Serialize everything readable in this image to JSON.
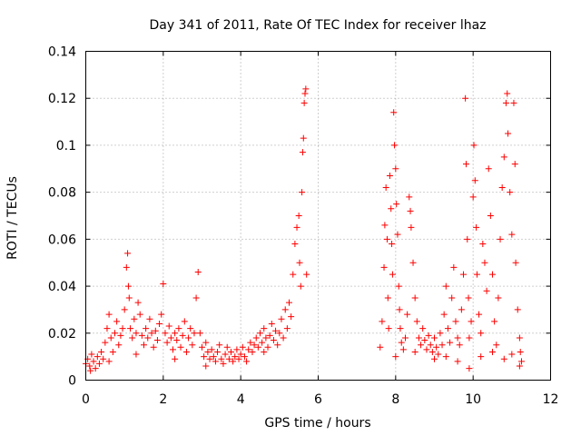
{
  "chart_data": {
    "type": "scatter",
    "title": "Day 341 of 2011, Rate Of TEC Index for receiver lhaz",
    "xlabel": "GPS time / hours",
    "ylabel": "ROTI / TECUs",
    "xlim": [
      0,
      12
    ],
    "ylim": [
      0,
      0.14
    ],
    "xticks": [
      "0",
      "2",
      "4",
      "6",
      "8",
      "10",
      "12"
    ],
    "yticks": [
      "0",
      "0.02",
      "0.04",
      "0.06",
      "0.08",
      "0.1",
      "0.12",
      "0.14"
    ],
    "grid": true,
    "marker": "+",
    "color": "#ff0000",
    "series": [
      {
        "name": "ROTI",
        "points": [
          [
            0.0,
            0.007
          ],
          [
            0.05,
            0.009
          ],
          [
            0.1,
            0.006
          ],
          [
            0.15,
            0.011
          ],
          [
            0.2,
            0.008
          ],
          [
            0.25,
            0.005
          ],
          [
            0.3,
            0.01
          ],
          [
            0.35,
            0.007
          ],
          [
            0.4,
            0.012
          ],
          [
            0.45,
            0.009
          ],
          [
            0.5,
            0.016
          ],
          [
            0.55,
            0.022
          ],
          [
            0.6,
            0.028
          ],
          [
            0.65,
            0.018
          ],
          [
            0.7,
            0.012
          ],
          [
            0.75,
            0.02
          ],
          [
            0.8,
            0.025
          ],
          [
            0.85,
            0.015
          ],
          [
            0.9,
            0.019
          ],
          [
            0.95,
            0.022
          ],
          [
            1.0,
            0.03
          ],
          [
            1.05,
            0.048
          ],
          [
            1.08,
            0.054
          ],
          [
            1.1,
            0.04
          ],
          [
            1.12,
            0.035
          ],
          [
            1.15,
            0.022
          ],
          [
            1.2,
            0.018
          ],
          [
            1.25,
            0.026
          ],
          [
            1.3,
            0.02
          ],
          [
            1.35,
            0.033
          ],
          [
            1.4,
            0.028
          ],
          [
            1.45,
            0.019
          ],
          [
            1.5,
            0.015
          ],
          [
            1.55,
            0.022
          ],
          [
            1.6,
            0.018
          ],
          [
            1.65,
            0.026
          ],
          [
            1.7,
            0.02
          ],
          [
            1.75,
            0.014
          ],
          [
            1.8,
            0.021
          ],
          [
            1.85,
            0.017
          ],
          [
            1.9,
            0.024
          ],
          [
            1.95,
            0.028
          ],
          [
            2.0,
            0.041
          ],
          [
            2.05,
            0.02
          ],
          [
            2.1,
            0.016
          ],
          [
            2.15,
            0.023
          ],
          [
            2.2,
            0.018
          ],
          [
            2.25,
            0.013
          ],
          [
            2.3,
            0.02
          ],
          [
            2.35,
            0.017
          ],
          [
            2.4,
            0.022
          ],
          [
            2.45,
            0.014
          ],
          [
            2.5,
            0.019
          ],
          [
            2.55,
            0.025
          ],
          [
            2.6,
            0.012
          ],
          [
            2.65,
            0.018
          ],
          [
            2.7,
            0.022
          ],
          [
            2.75,
            0.015
          ],
          [
            2.8,
            0.02
          ],
          [
            2.85,
            0.035
          ],
          [
            2.9,
            0.046
          ],
          [
            2.95,
            0.02
          ],
          [
            3.0,
            0.014
          ],
          [
            3.05,
            0.01
          ],
          [
            3.1,
            0.016
          ],
          [
            3.15,
            0.012
          ],
          [
            3.2,
            0.009
          ],
          [
            3.25,
            0.013
          ],
          [
            3.3,
            0.01
          ],
          [
            3.35,
            0.008
          ],
          [
            3.4,
            0.012
          ],
          [
            3.45,
            0.015
          ],
          [
            3.5,
            0.009
          ],
          [
            3.55,
            0.007
          ],
          [
            3.6,
            0.011
          ],
          [
            3.65,
            0.014
          ],
          [
            3.7,
            0.009
          ],
          [
            3.75,
            0.012
          ],
          [
            3.8,
            0.008
          ],
          [
            3.85,
            0.01
          ],
          [
            3.9,
            0.013
          ],
          [
            3.95,
            0.009
          ],
          [
            4.0,
            0.011
          ],
          [
            4.05,
            0.014
          ],
          [
            4.1,
            0.01
          ],
          [
            4.15,
            0.008
          ],
          [
            4.2,
            0.013
          ],
          [
            4.25,
            0.016
          ],
          [
            4.3,
            0.012
          ],
          [
            4.35,
            0.015
          ],
          [
            4.4,
            0.018
          ],
          [
            4.45,
            0.014
          ],
          [
            4.5,
            0.02
          ],
          [
            4.55,
            0.016
          ],
          [
            4.6,
            0.022
          ],
          [
            4.65,
            0.018
          ],
          [
            4.7,
            0.014
          ],
          [
            4.75,
            0.019
          ],
          [
            4.8,
            0.024
          ],
          [
            4.85,
            0.017
          ],
          [
            4.9,
            0.021
          ],
          [
            4.95,
            0.015
          ],
          [
            5.0,
            0.02
          ],
          [
            5.05,
            0.026
          ],
          [
            5.1,
            0.018
          ],
          [
            5.15,
            0.03
          ],
          [
            5.2,
            0.022
          ],
          [
            5.25,
            0.033
          ],
          [
            5.3,
            0.027
          ],
          [
            5.35,
            0.045
          ],
          [
            5.4,
            0.058
          ],
          [
            5.45,
            0.065
          ],
          [
            5.5,
            0.07
          ],
          [
            5.52,
            0.05
          ],
          [
            5.55,
            0.04
          ],
          [
            5.58,
            0.08
          ],
          [
            5.6,
            0.097
          ],
          [
            5.62,
            0.103
          ],
          [
            5.64,
            0.118
          ],
          [
            5.66,
            0.122
          ],
          [
            5.68,
            0.124
          ],
          [
            5.7,
            0.045
          ],
          [
            0.12,
            0.004
          ],
          [
            0.6,
            0.008
          ],
          [
            1.3,
            0.011
          ],
          [
            2.3,
            0.009
          ],
          [
            3.1,
            0.006
          ],
          [
            4.6,
            0.012
          ],
          [
            7.6,
            0.014
          ],
          [
            7.65,
            0.025
          ],
          [
            7.7,
            0.048
          ],
          [
            7.72,
            0.066
          ],
          [
            7.75,
            0.082
          ],
          [
            7.78,
            0.06
          ],
          [
            7.8,
            0.035
          ],
          [
            7.82,
            0.022
          ],
          [
            7.85,
            0.087
          ],
          [
            7.88,
            0.073
          ],
          [
            7.9,
            0.058
          ],
          [
            7.92,
            0.045
          ],
          [
            7.95,
            0.114
          ],
          [
            7.97,
            0.1
          ],
          [
            8.0,
            0.09
          ],
          [
            8.02,
            0.075
          ],
          [
            8.05,
            0.062
          ],
          [
            8.08,
            0.04
          ],
          [
            8.1,
            0.03
          ],
          [
            8.12,
            0.022
          ],
          [
            8.15,
            0.016
          ],
          [
            8.2,
            0.013
          ],
          [
            8.25,
            0.018
          ],
          [
            8.3,
            0.028
          ],
          [
            8.35,
            0.078
          ],
          [
            8.38,
            0.072
          ],
          [
            8.4,
            0.065
          ],
          [
            8.45,
            0.05
          ],
          [
            8.5,
            0.035
          ],
          [
            8.55,
            0.025
          ],
          [
            8.6,
            0.018
          ],
          [
            8.65,
            0.015
          ],
          [
            8.7,
            0.022
          ],
          [
            8.75,
            0.017
          ],
          [
            8.8,
            0.013
          ],
          [
            8.85,
            0.019
          ],
          [
            8.9,
            0.015
          ],
          [
            8.95,
            0.012
          ],
          [
            9.0,
            0.018
          ],
          [
            9.05,
            0.014
          ],
          [
            9.1,
            0.011
          ],
          [
            9.15,
            0.02
          ],
          [
            9.2,
            0.015
          ],
          [
            9.25,
            0.028
          ],
          [
            9.3,
            0.04
          ],
          [
            9.35,
            0.022
          ],
          [
            9.4,
            0.016
          ],
          [
            9.45,
            0.035
          ],
          [
            9.5,
            0.048
          ],
          [
            9.55,
            0.025
          ],
          [
            9.6,
            0.018
          ],
          [
            9.65,
            0.015
          ],
          [
            9.7,
            0.03
          ],
          [
            9.75,
            0.045
          ],
          [
            9.8,
            0.12
          ],
          [
            9.82,
            0.092
          ],
          [
            9.85,
            0.06
          ],
          [
            9.88,
            0.035
          ],
          [
            9.9,
            0.018
          ],
          [
            9.95,
            0.025
          ],
          [
            10.0,
            0.078
          ],
          [
            10.02,
            0.1
          ],
          [
            10.05,
            0.085
          ],
          [
            10.08,
            0.065
          ],
          [
            10.1,
            0.045
          ],
          [
            10.15,
            0.028
          ],
          [
            10.2,
            0.02
          ],
          [
            10.25,
            0.058
          ],
          [
            10.3,
            0.05
          ],
          [
            10.35,
            0.038
          ],
          [
            10.4,
            0.09
          ],
          [
            10.45,
            0.07
          ],
          [
            10.5,
            0.045
          ],
          [
            10.55,
            0.025
          ],
          [
            10.6,
            0.015
          ],
          [
            10.65,
            0.035
          ],
          [
            10.7,
            0.06
          ],
          [
            10.75,
            0.082
          ],
          [
            10.8,
            0.095
          ],
          [
            10.85,
            0.118
          ],
          [
            10.88,
            0.122
          ],
          [
            10.9,
            0.105
          ],
          [
            10.95,
            0.08
          ],
          [
            11.0,
            0.062
          ],
          [
            11.05,
            0.118
          ],
          [
            11.08,
            0.092
          ],
          [
            11.1,
            0.05
          ],
          [
            11.15,
            0.03
          ],
          [
            11.2,
            0.018
          ],
          [
            11.22,
            0.012
          ],
          [
            11.25,
            0.008
          ],
          [
            9.3,
            0.01
          ],
          [
            9.6,
            0.008
          ],
          [
            9.9,
            0.005
          ],
          [
            10.2,
            0.01
          ],
          [
            10.5,
            0.012
          ],
          [
            10.8,
            0.009
          ],
          [
            11.0,
            0.011
          ],
          [
            11.2,
            0.006
          ],
          [
            8.0,
            0.01
          ],
          [
            8.5,
            0.012
          ],
          [
            9.0,
            0.009
          ]
        ]
      }
    ]
  }
}
